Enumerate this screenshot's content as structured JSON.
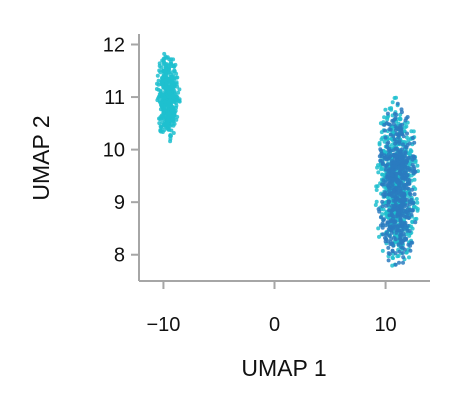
{
  "chart_data": {
    "type": "scatter",
    "xlabel": "UMAP 1",
    "ylabel": "UMAP 2",
    "xlim": [
      -12.2,
      14
    ],
    "ylim": [
      7.5,
      12.2
    ],
    "xticks": [
      -10,
      0,
      10
    ],
    "yticks": [
      8,
      9,
      10,
      11,
      12
    ],
    "xtick_labels": [
      "−10",
      "0",
      "10"
    ],
    "ytick_labels": [
      "8",
      "9",
      "10",
      "11",
      "12"
    ],
    "grid": false,
    "legend": "none",
    "axis_color": "#a6a6a6",
    "clusters": [
      {
        "color": "#1fbfcf",
        "center": [
          -9.6,
          11.0
        ],
        "x_range": [
          -10.7,
          -8.5
        ],
        "y_range": [
          10.1,
          11.85
        ],
        "approx_points": 450
      },
      {
        "color": "#1fbfcf",
        "center": [
          11.0,
          9.35
        ],
        "x_range": [
          9.0,
          13.0
        ],
        "y_range": [
          7.7,
          11.1
        ],
        "approx_points": 700
      },
      {
        "color": "#2a7bbf",
        "center": [
          11.1,
          9.3
        ],
        "x_range": [
          9.3,
          12.9
        ],
        "y_range": [
          7.8,
          11.0
        ],
        "approx_points": 550
      }
    ]
  }
}
